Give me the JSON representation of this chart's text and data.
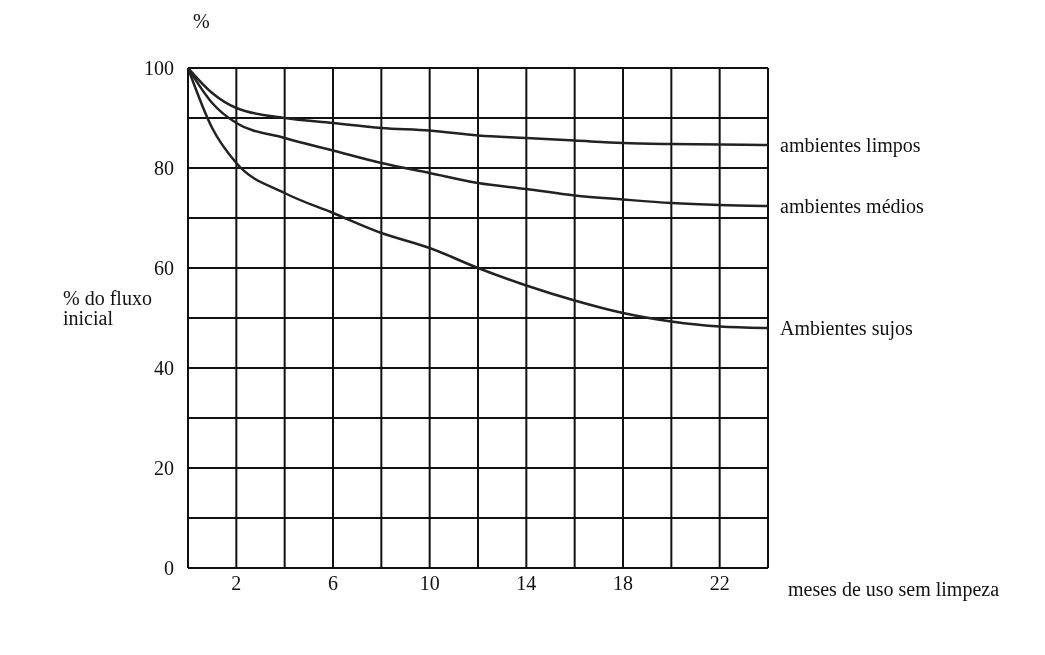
{
  "chart_data": {
    "type": "line",
    "xlabel": "meses de uso sem limpeza",
    "ylabel": "% do fluxo inicial",
    "annotations": [
      "%"
    ],
    "x": [
      0,
      1,
      2,
      4,
      6,
      8,
      10,
      12,
      14,
      16,
      18,
      20,
      22,
      24
    ],
    "series": [
      {
        "name": "ambientes limpos",
        "color": "#222222",
        "values": [
          100,
          95,
          92,
          90,
          89,
          88,
          87.5,
          86.5,
          86,
          85.5,
          85,
          84.8,
          84.7,
          84.6
        ]
      },
      {
        "name": "ambientes médios",
        "color": "#222222",
        "values": [
          100,
          93,
          89,
          86,
          83.5,
          81,
          79,
          77,
          75.8,
          74.5,
          73.7,
          73,
          72.6,
          72.4
        ]
      },
      {
        "name": "Ambientes sujos",
        "color": "#222222",
        "values": [
          100,
          88,
          81,
          75,
          71,
          67,
          64,
          60,
          56.5,
          53.5,
          51,
          49.3,
          48.3,
          48
        ]
      }
    ],
    "xlim": [
      0,
      24
    ],
    "xticks": [
      {
        "value": 0,
        "label": null
      },
      2,
      {
        "value": 4,
        "label": null
      },
      6,
      {
        "value": 8,
        "label": null
      },
      10,
      {
        "value": 12,
        "label": null
      },
      14,
      {
        "value": 16,
        "label": null
      },
      18,
      {
        "value": 20,
        "label": null
      },
      22,
      {
        "value": 24,
        "label": null
      }
    ],
    "ylim": [
      0,
      100
    ],
    "yticks": [
      0,
      {
        "value": 10,
        "label": null
      },
      20,
      {
        "value": 30,
        "label": null
      },
      40,
      {
        "value": 50,
        "label": null
      },
      60,
      {
        "value": 70,
        "label": null
      },
      80,
      {
        "value": 90,
        "label": null
      },
      100
    ],
    "grid": true,
    "legend": false,
    "marker": "none",
    "line_style": "solid"
  }
}
